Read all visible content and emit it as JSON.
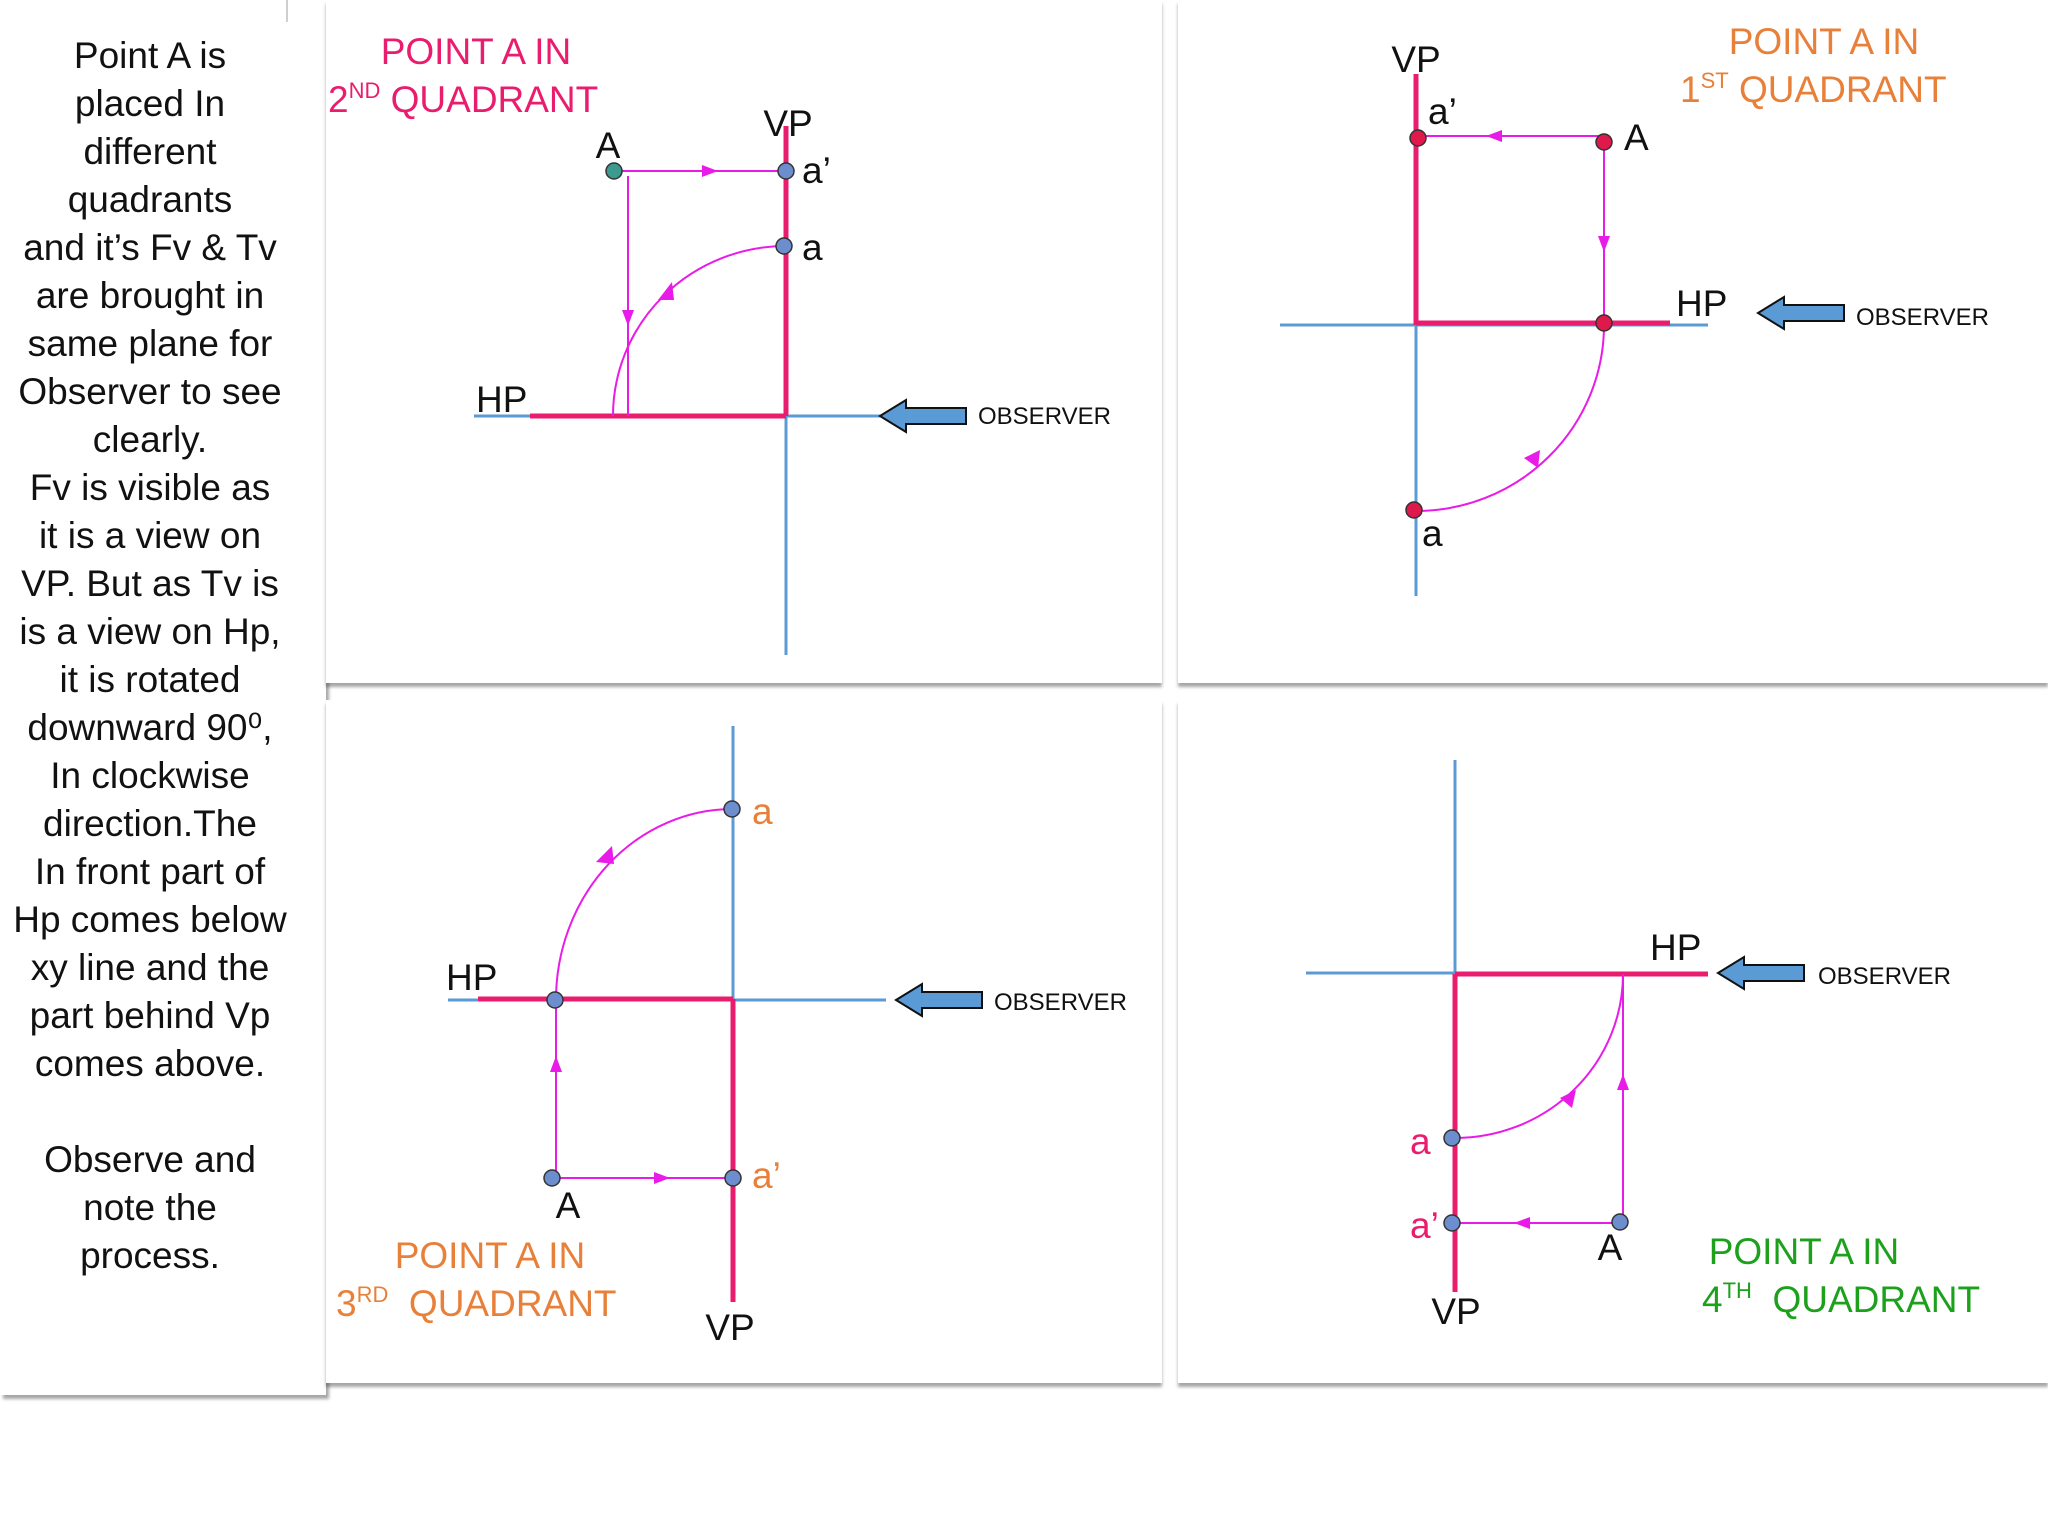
{
  "colors": {
    "axis": "#5B9BD5",
    "view_line": "#EA1C6E",
    "projector": "#E81BE8",
    "point_fill": "#6C8ECF",
    "point_red": "#E0194C",
    "q2_title": "#EA1C6E",
    "q1_title": "#E8803A",
    "q3_title": "#E8803A",
    "q4_title": "#1DA11D"
  },
  "sidebar": {
    "text": "Point A is\nplaced In\ndifferent\nquadrants\nand it’s Fv & Tv\nare brought in\nsame plane for\nObserver to see\nclearly.\nFv is visible as\nit is a view on\nVP. But as Tv is\nis a view on Hp,\nit is rotated\ndownward 90⁰,\nIn clockwise\ndirection.The\nIn front part of\nHp comes below\nxy line and the\npart behind Vp\ncomes above.\n\nObserve and\nnote the\nprocess."
  },
  "q2": {
    "title_line1": "POINT A IN",
    "ordinal_num": "2",
    "ordinal_sup": "ND",
    "title_word": " QUADRANT",
    "vp": "VP",
    "hp": "HP",
    "point": "A",
    "fv": "a’",
    "tv": "a",
    "observer": "OBSERVER"
  },
  "q1": {
    "title_line1": "POINT A IN",
    "ordinal_num": "1",
    "ordinal_sup": "ST",
    "title_word": " QUADRANT",
    "vp": "VP",
    "hp": "HP",
    "point": "A",
    "fv": "a’",
    "tv": "a",
    "observer": "OBSERVER"
  },
  "q3": {
    "title_line1": "POINT A IN",
    "ordinal_num": "3",
    "ordinal_sup": "RD",
    "title_word": "  QUADRANT",
    "vp": "VP",
    "hp": "HP",
    "point": "A",
    "fv": "a’",
    "tv": "a",
    "observer": "OBSERVER"
  },
  "q4": {
    "title_line1": "POINT A IN",
    "ordinal_num": "4",
    "ordinal_sup": "TH",
    "title_word": "  QUADRANT",
    "vp": "VP",
    "hp": "HP",
    "point": "A",
    "fv": "a’",
    "tv": "a",
    "observer": "OBSERVER"
  }
}
